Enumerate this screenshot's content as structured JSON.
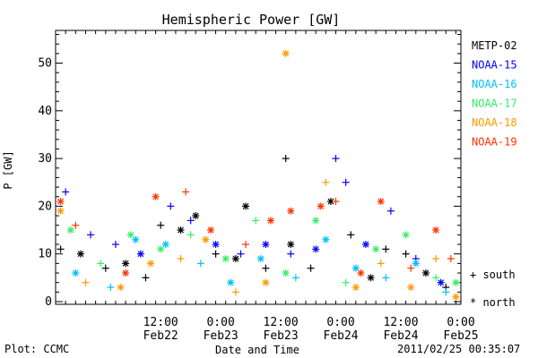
{
  "chart_data": {
    "type": "scatter",
    "title": "Hemispheric Power [GW]",
    "xlabel": "Date and Time",
    "ylabel": "P [GW]",
    "ylim": [
      0,
      57
    ],
    "xlim": [
      "2011-02-21T15:00",
      "2011-02-25T00:00"
    ],
    "yticks": [
      0,
      10,
      20,
      30,
      40,
      50
    ],
    "xticks": [
      {
        "time": "2011-02-22T12:00",
        "label": "12:00",
        "date": "Feb22"
      },
      {
        "time": "2011-02-23T00:00",
        "label": "0:00",
        "date": "Feb23"
      },
      {
        "time": "2011-02-23T12:00",
        "label": "12:00",
        "date": "Feb23"
      },
      {
        "time": "2011-02-24T00:00",
        "label": "0:00",
        "date": "Feb24"
      },
      {
        "time": "2011-02-24T12:00",
        "label": "12:00",
        "date": "Feb24"
      },
      {
        "time": "2011-02-25T00:00",
        "label": "0:00",
        "date": "Feb25"
      }
    ],
    "grid": false,
    "legend_position": "right",
    "symbols": [
      {
        "marker": "+",
        "label": "south"
      },
      {
        "marker": "*",
        "label": "north"
      }
    ],
    "series": [
      {
        "name": "METP-02",
        "color": "#000000",
        "points": [
          [
            "2011-02-21T16:00",
            11,
            "+"
          ],
          [
            "2011-02-21T20:00",
            10,
            "*"
          ],
          [
            "2011-02-22T01:00",
            7,
            "+"
          ],
          [
            "2011-02-22T05:00",
            8,
            "*"
          ],
          [
            "2011-02-22T09:00",
            5,
            "+"
          ],
          [
            "2011-02-22T12:00",
            16,
            "+"
          ],
          [
            "2011-02-22T16:00",
            15,
            "*"
          ],
          [
            "2011-02-22T19:00",
            18,
            "*"
          ],
          [
            "2011-02-22T23:00",
            10,
            "+"
          ],
          [
            "2011-02-23T03:00",
            9,
            "*"
          ],
          [
            "2011-02-23T05:00",
            20,
            "*"
          ],
          [
            "2011-02-23T09:00",
            7,
            "+"
          ],
          [
            "2011-02-23T13:00",
            30,
            "+"
          ],
          [
            "2011-02-23T14:00",
            12,
            "*"
          ],
          [
            "2011-02-23T18:00",
            7,
            "+"
          ],
          [
            "2011-02-23T22:00",
            21,
            "*"
          ],
          [
            "2011-02-24T02:00",
            14,
            "+"
          ],
          [
            "2011-02-24T06:00",
            5,
            "*"
          ],
          [
            "2011-02-24T09:00",
            11,
            "+"
          ],
          [
            "2011-02-24T13:00",
            10,
            "+"
          ],
          [
            "2011-02-24T17:00",
            6,
            "*"
          ],
          [
            "2011-02-24T21:00",
            3,
            "+"
          ]
        ]
      },
      {
        "name": "NOAA-15",
        "color": "#0000ff",
        "points": [
          [
            "2011-02-21T17:00",
            23,
            "+"
          ],
          [
            "2011-02-21T22:00",
            14,
            "+"
          ],
          [
            "2011-02-22T03:00",
            12,
            "+"
          ],
          [
            "2011-02-22T08:00",
            10,
            "*"
          ],
          [
            "2011-02-22T14:00",
            20,
            "+"
          ],
          [
            "2011-02-22T18:00",
            17,
            "+"
          ],
          [
            "2011-02-22T23:00",
            12,
            "*"
          ],
          [
            "2011-02-23T04:00",
            10,
            "+"
          ],
          [
            "2011-02-23T09:00",
            12,
            "*"
          ],
          [
            "2011-02-23T14:00",
            10,
            "+"
          ],
          [
            "2011-02-23T19:00",
            11,
            "*"
          ],
          [
            "2011-02-23T23:00",
            30,
            "+"
          ],
          [
            "2011-02-24T01:00",
            25,
            "+"
          ],
          [
            "2011-02-24T05:00",
            12,
            "*"
          ],
          [
            "2011-02-24T10:00",
            19,
            "+"
          ],
          [
            "2011-02-24T15:00",
            9,
            "+"
          ],
          [
            "2011-02-24T20:00",
            4,
            "*"
          ]
        ]
      },
      {
        "name": "NOAA-16",
        "color": "#00bfff",
        "points": [
          [
            "2011-02-21T19:00",
            6,
            "*"
          ],
          [
            "2011-02-22T02:00",
            3,
            "+"
          ],
          [
            "2011-02-22T07:00",
            13,
            "*"
          ],
          [
            "2011-02-22T13:00",
            12,
            "*"
          ],
          [
            "2011-02-22T20:00",
            8,
            "+"
          ],
          [
            "2011-02-23T02:00",
            4,
            "*"
          ],
          [
            "2011-02-23T08:00",
            9,
            "*"
          ],
          [
            "2011-02-23T15:00",
            5,
            "+"
          ],
          [
            "2011-02-23T21:00",
            13,
            "*"
          ],
          [
            "2011-02-24T03:00",
            7,
            "*"
          ],
          [
            "2011-02-24T09:00",
            5,
            "+"
          ],
          [
            "2011-02-24T15:00",
            8,
            "*"
          ],
          [
            "2011-02-24T21:00",
            2,
            "+"
          ]
        ]
      },
      {
        "name": "NOAA-17",
        "color": "#33ee66",
        "points": [
          [
            "2011-02-21T18:00",
            15,
            "*"
          ],
          [
            "2011-02-22T00:00",
            8,
            "+"
          ],
          [
            "2011-02-22T06:00",
            14,
            "*"
          ],
          [
            "2011-02-22T12:00",
            11,
            "*"
          ],
          [
            "2011-02-22T18:00",
            14,
            "+"
          ],
          [
            "2011-02-23T01:00",
            9,
            "*"
          ],
          [
            "2011-02-23T07:00",
            17,
            "+"
          ],
          [
            "2011-02-23T13:00",
            6,
            "*"
          ],
          [
            "2011-02-23T19:00",
            17,
            "*"
          ],
          [
            "2011-02-24T01:00",
            4,
            "+"
          ],
          [
            "2011-02-24T07:00",
            11,
            "*"
          ],
          [
            "2011-02-24T13:00",
            14,
            "*"
          ],
          [
            "2011-02-24T19:00",
            5,
            "+"
          ],
          [
            "2011-02-24T23:00",
            4,
            "*"
          ]
        ]
      },
      {
        "name": "NOAA-18",
        "color": "#ff9900",
        "points": [
          [
            "2011-02-21T16:00",
            19,
            "*"
          ],
          [
            "2011-02-21T21:00",
            4,
            "+"
          ],
          [
            "2011-02-22T04:00",
            3,
            "*"
          ],
          [
            "2011-02-22T10:00",
            8,
            "*"
          ],
          [
            "2011-02-22T16:00",
            9,
            "+"
          ],
          [
            "2011-02-22T21:00",
            13,
            "*"
          ],
          [
            "2011-02-23T03:00",
            2,
            "+"
          ],
          [
            "2011-02-23T09:00",
            4,
            "*"
          ],
          [
            "2011-02-23T13:00",
            52,
            "*"
          ],
          [
            "2011-02-23T21:00",
            25,
            "+"
          ],
          [
            "2011-02-24T03:00",
            3,
            "*"
          ],
          [
            "2011-02-24T08:00",
            8,
            "+"
          ],
          [
            "2011-02-24T14:00",
            3,
            "*"
          ],
          [
            "2011-02-24T19:00",
            9,
            "+"
          ],
          [
            "2011-02-24T23:00",
            1,
            "*"
          ]
        ]
      },
      {
        "name": "NOAA-19",
        "color": "#ff3300",
        "points": [
          [
            "2011-02-21T16:00",
            21,
            "*"
          ],
          [
            "2011-02-21T19:00",
            16,
            "+"
          ],
          [
            "2011-02-22T05:00",
            6,
            "*"
          ],
          [
            "2011-02-22T11:00",
            22,
            "*"
          ],
          [
            "2011-02-22T17:00",
            23,
            "+"
          ],
          [
            "2011-02-22T22:00",
            15,
            "*"
          ],
          [
            "2011-02-23T05:00",
            12,
            "+"
          ],
          [
            "2011-02-23T10:00",
            17,
            "*"
          ],
          [
            "2011-02-23T14:00",
            19,
            "*"
          ],
          [
            "2011-02-23T20:00",
            20,
            "*"
          ],
          [
            "2011-02-23T23:00",
            21,
            "+"
          ],
          [
            "2011-02-24T04:00",
            6,
            "*"
          ],
          [
            "2011-02-24T08:00",
            21,
            "*"
          ],
          [
            "2011-02-24T14:00",
            7,
            "+"
          ],
          [
            "2011-02-24T19:00",
            15,
            "*"
          ],
          [
            "2011-02-24T22:00",
            9,
            "+"
          ]
        ]
      }
    ]
  },
  "footer": {
    "left": "Plot: CCMC",
    "right": "2011/02/25 00:35:07"
  }
}
